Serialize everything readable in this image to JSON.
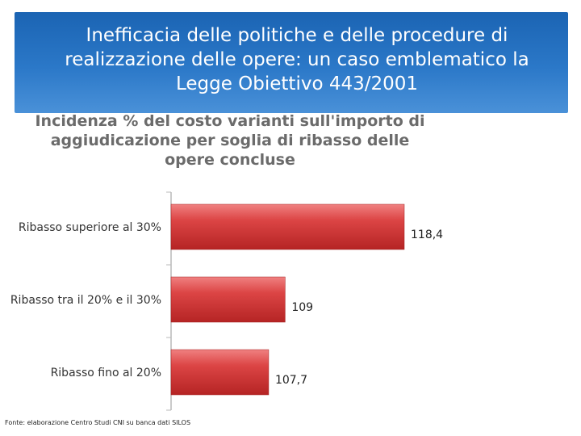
{
  "header": {
    "title": "Inefficacia delle politiche e delle procedure di realizzazione delle opere: un caso emblematico la Legge Obiettivo 443/2001"
  },
  "chart_data": {
    "type": "bar",
    "orientation": "horizontal",
    "title": "Incidenza % del costo varianti sull'importo di aggiudicazione per soglia di ribasso delle opere concluse",
    "categories": [
      "Ribasso superiore al 30%",
      "Ribasso tra il 20% e il 30%",
      "Ribasso fino al 20%"
    ],
    "values": [
      118.4,
      109,
      107.7
    ],
    "value_labels": [
      "118,4",
      "109",
      "107,7"
    ],
    "xlim": [
      100,
      119.1
    ],
    "grid": false,
    "legend": "none",
    "bar_color": "#d23a3a"
  },
  "footer": {
    "source": "Fonte: elaborazione Centro Studi CNI su banca dati SILOS"
  }
}
